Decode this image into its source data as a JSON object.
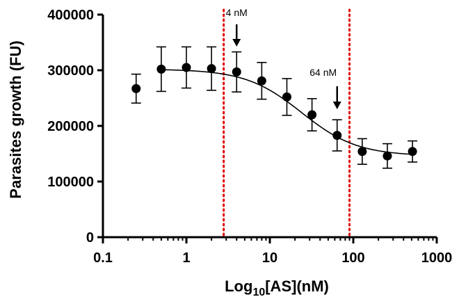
{
  "chart_data": {
    "type": "scatter",
    "title": "",
    "xlabel_main": "Log",
    "xlabel_sub": "10",
    "xlabel_rest": "[AS](nM)",
    "ylabel": "Parasites growth (FU)",
    "x_scale": "log",
    "xlim": [
      0.1,
      1000
    ],
    "ylim": [
      0,
      400000
    ],
    "x_ticks": [
      0.1,
      1,
      10,
      100,
      1000
    ],
    "x_tick_labels": [
      "0.1",
      "1",
      "10",
      "100",
      "1000"
    ],
    "y_ticks": [
      0,
      100000,
      200000,
      300000,
      400000
    ],
    "y_tick_labels": [
      "0",
      "100000",
      "200000",
      "300000",
      "400000"
    ],
    "grid": false,
    "series": [
      {
        "x": [
          0.25,
          0.5,
          1,
          2,
          4,
          8,
          16,
          32,
          64,
          128,
          256,
          512
        ],
        "y": [
          267000,
          302000,
          305000,
          303000,
          297000,
          281000,
          252000,
          220000,
          183000,
          154000,
          146000,
          154000
        ],
        "error": [
          26000,
          40000,
          37000,
          39000,
          36000,
          33000,
          33000,
          29000,
          28000,
          23000,
          22000,
          19000
        ]
      }
    ],
    "fit_curve": {
      "model": "sigmoid",
      "top": 302000,
      "bottom": 146000,
      "ic50": 24,
      "hill_slope": 1.3
    },
    "reference_lines": [
      {
        "x": 2.8,
        "color": "#e00000",
        "style": "dotted"
      },
      {
        "x": 90,
        "color": "#e00000",
        "style": "dotted"
      }
    ],
    "annotations": [
      {
        "text": "4 nM",
        "x": 4
      },
      {
        "text": "64 nM",
        "x": 64
      }
    ],
    "colors": {
      "points": "#000000",
      "curve": "#000000",
      "reference": "#e00000"
    }
  }
}
